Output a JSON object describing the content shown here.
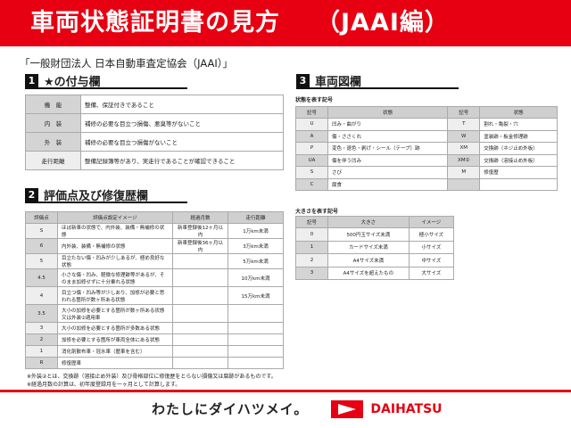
{
  "header": {
    "title": "車両状態証明書の見方",
    "subtitle": "（JAAI編）"
  },
  "organization": "「一般財団法人 日本自動車査定協会（JAAI）」",
  "section1": {
    "num": "1",
    "title": "★の付与欄",
    "rows": [
      {
        "label": "機　能",
        "text": "整備、保証付きであること"
      },
      {
        "label": "内　装",
        "text": "補修の必要な目立つ損傷、悪臭等がないこと"
      },
      {
        "label": "外　装",
        "text": "補修の必要な目立つ損傷がないこと"
      },
      {
        "label": "走行距離",
        "text": "整備記録簿等があり、実走行であることが確認できること"
      }
    ]
  },
  "section2": {
    "num": "2",
    "title": "評価点及び修復歴欄",
    "headers": [
      "評価点",
      "評価点設定イメージ",
      "経過月数",
      "走行距離"
    ],
    "rows": [
      [
        "S",
        "ほぼ新車の状態で、内外装、装備・無補修の状態",
        "新車登録後12ヶ月以内",
        "1万km未満"
      ],
      [
        "6",
        "内外装、装備・無補修の状態",
        "新車登録後36ヶ月以内",
        "3万km未満"
      ],
      [
        "5",
        "目立たない傷・凹みが少しあるが、極め良好な状態",
        "",
        "5万km未満"
      ],
      [
        "4.5",
        "小さな傷・凹み、軽微な修理跡等があるが、そのまま加修せずに十分乗れる状態",
        "",
        "10万km未満"
      ],
      [
        "4",
        "目立つ傷・凹み等が少しあり、加修が必要と思われる箇所が数ヶ所ある状態",
        "",
        "15万km未満"
      ],
      [
        "3.5",
        "大小の加修を必要とする箇所が数ヶ所ある状態又は外装②適用車",
        "",
        ""
      ],
      [
        "3",
        "大小の加修を必要とする箇所が多数ある状態",
        "",
        ""
      ],
      [
        "2",
        "加修を必要とする箇所が車両全体にある状態",
        "",
        ""
      ],
      [
        "1",
        "消化剤散布車・冠水車（歴車を含む）",
        "",
        ""
      ],
      [
        "R",
        "修復歴車",
        "",
        ""
      ]
    ]
  },
  "notes": [
    "※外装②とは、交換跡（溶接止め外装）及び骨格部位に修復歴をとらない損傷又は腐跡があるものです。",
    "※経過月数の計算は、初年度登録月を一ヶ月として計算します。"
  ],
  "section3": {
    "num": "3",
    "title": "車両図欄",
    "state_label": "状態を表す記号",
    "state_headers": [
      "記号",
      "状態",
      "記号",
      "状態"
    ],
    "state_rows": [
      [
        "U",
        "凹み・曲がり",
        "T",
        "割れ・亀裂・穴"
      ],
      [
        "A",
        "傷・ささくれ",
        "W",
        "塗装跡・板金修理跡"
      ],
      [
        "P",
        "変色・退色・剥げ・シール（テープ）跡",
        "XM",
        "交換跡（ネジ止め外板）"
      ],
      [
        "UA",
        "傷を伴う凹み",
        "XM②",
        "交換跡（溶接止め外板）"
      ],
      [
        "S",
        "さび",
        "M",
        "修復歴"
      ],
      [
        "C",
        "腐食",
        "",
        ""
      ]
    ],
    "size_label": "大きさを表す記号",
    "size_headers": [
      "記号",
      "大きさ",
      "イメージ"
    ],
    "size_rows": [
      [
        "0",
        "500円玉サイズ未満",
        "極小サイズ"
      ],
      [
        "1",
        "カードサイズ未満",
        "小サイズ"
      ],
      [
        "2",
        "A4サイズ未満",
        "中サイズ"
      ],
      [
        "3",
        "A4サイズを超えたもの",
        "大サイズ"
      ]
    ]
  },
  "footer": {
    "slogan": "わたしにダイハツメイ。",
    "brand": "DAIHATSU",
    "brand_color": "#e60012"
  }
}
